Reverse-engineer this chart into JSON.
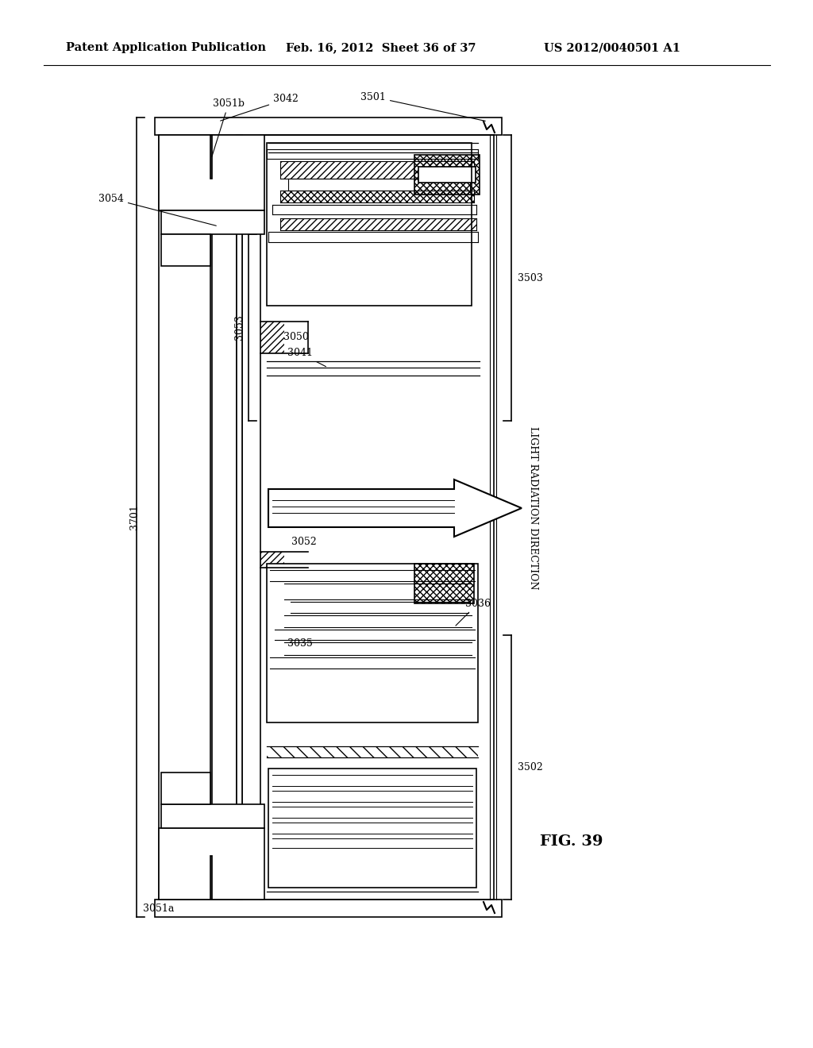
{
  "header_left": "Patent Application Publication",
  "header_mid": "Feb. 16, 2012  Sheet 36 of 37",
  "header_right": "US 2012/0040501 A1",
  "fig_label": "FIG. 39",
  "light_label": "LIGHT RADIATION DIRECTION",
  "bg_color": "#ffffff",
  "line_color": "#000000",
  "header_fontsize": 10.5,
  "label_fontsize": 9
}
